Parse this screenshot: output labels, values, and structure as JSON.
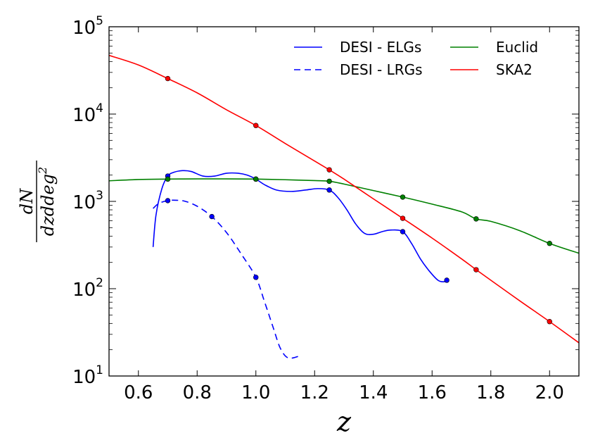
{
  "chart_data": {
    "type": "line",
    "title": "",
    "xlabel": "z",
    "ylabel": {
      "numerator": "dN",
      "denominator": "dzddeg",
      "denominator_power": "2"
    },
    "xlim": [
      0.5,
      2.1
    ],
    "ylim": [
      10,
      100000
    ],
    "yscale": "log",
    "xticks": [
      "0.6",
      "0.8",
      "1.0",
      "1.2",
      "1.4",
      "1.6",
      "1.8",
      "2.0"
    ],
    "yticks": [
      {
        "base": "10",
        "exp": "1"
      },
      {
        "base": "10",
        "exp": "2"
      },
      {
        "base": "10",
        "exp": "3"
      },
      {
        "base": "10",
        "exp": "4"
      },
      {
        "base": "10",
        "exp": "5"
      }
    ],
    "legend_position": "top-right",
    "series": [
      {
        "name": "DESI - ELGs",
        "color": "#0000ff",
        "style": "solid",
        "points_x": [
          0.7,
          1.0,
          1.25,
          1.5,
          1.65
        ],
        "points_y": [
          1950,
          1800,
          1350,
          450,
          125
        ],
        "curve_x": [
          0.65,
          0.66,
          0.68,
          0.7,
          0.72,
          0.75,
          0.78,
          0.82,
          0.86,
          0.9,
          0.94,
          0.97,
          1.0,
          1.03,
          1.07,
          1.12,
          1.17,
          1.21,
          1.25,
          1.28,
          1.31,
          1.34,
          1.37,
          1.4,
          1.43,
          1.46,
          1.5,
          1.53,
          1.56,
          1.59,
          1.62,
          1.64,
          1.65
        ],
        "curve_y": [
          300,
          700,
          1400,
          1950,
          2150,
          2250,
          2200,
          1950,
          1950,
          2100,
          2100,
          2000,
          1800,
          1550,
          1350,
          1300,
          1350,
          1400,
          1350,
          1100,
          800,
          550,
          430,
          420,
          450,
          470,
          450,
          330,
          220,
          160,
          125,
          120,
          125
        ]
      },
      {
        "name": "DESI - LRGs",
        "color": "#0000ff",
        "style": "dashed",
        "points_x": [
          0.7,
          0.85,
          1.0
        ],
        "points_y": [
          1020,
          670,
          135
        ],
        "curve_x": [
          0.65,
          0.67,
          0.7,
          0.73,
          0.76,
          0.8,
          0.85,
          0.9,
          0.95,
          1.0,
          1.03,
          1.06,
          1.08,
          1.1,
          1.12,
          1.15
        ],
        "curve_y": [
          830,
          950,
          1020,
          1030,
          1000,
          880,
          670,
          440,
          250,
          135,
          70,
          35,
          22,
          17,
          16,
          17
        ]
      },
      {
        "name": "Euclid",
        "color": "#008000",
        "style": "solid",
        "points_x": [
          0.7,
          1.0,
          1.25,
          1.5,
          1.75,
          2.0
        ],
        "points_y": [
          1800,
          1800,
          1700,
          1120,
          630,
          330
        ],
        "curve_x": [
          0.5,
          0.6,
          0.7,
          0.8,
          0.9,
          1.0,
          1.1,
          1.2,
          1.25,
          1.3,
          1.4,
          1.5,
          1.6,
          1.7,
          1.75,
          1.8,
          1.9,
          2.0,
          2.1
        ],
        "curve_y": [
          1720,
          1780,
          1800,
          1810,
          1810,
          1800,
          1770,
          1730,
          1700,
          1580,
          1330,
          1120,
          930,
          760,
          630,
          590,
          460,
          330,
          255
        ]
      },
      {
        "name": "SKA2",
        "color": "#ff0000",
        "style": "solid",
        "points_x": [
          0.7,
          1.0,
          1.25,
          1.5,
          1.75,
          2.0
        ],
        "points_y": [
          25500,
          7400,
          2300,
          640,
          165,
          42
        ],
        "curve_x": [
          0.5,
          0.6,
          0.7,
          0.8,
          0.9,
          1.0,
          1.1,
          1.2,
          1.25,
          1.3,
          1.4,
          1.5,
          1.6,
          1.7,
          1.75,
          1.8,
          1.9,
          2.0,
          2.1
        ],
        "curve_y": [
          47000,
          36500,
          25500,
          17500,
          11200,
          7400,
          4600,
          2900,
          2300,
          1800,
          1070,
          640,
          380,
          220,
          165,
          125,
          72,
          42,
          24
        ]
      }
    ]
  }
}
